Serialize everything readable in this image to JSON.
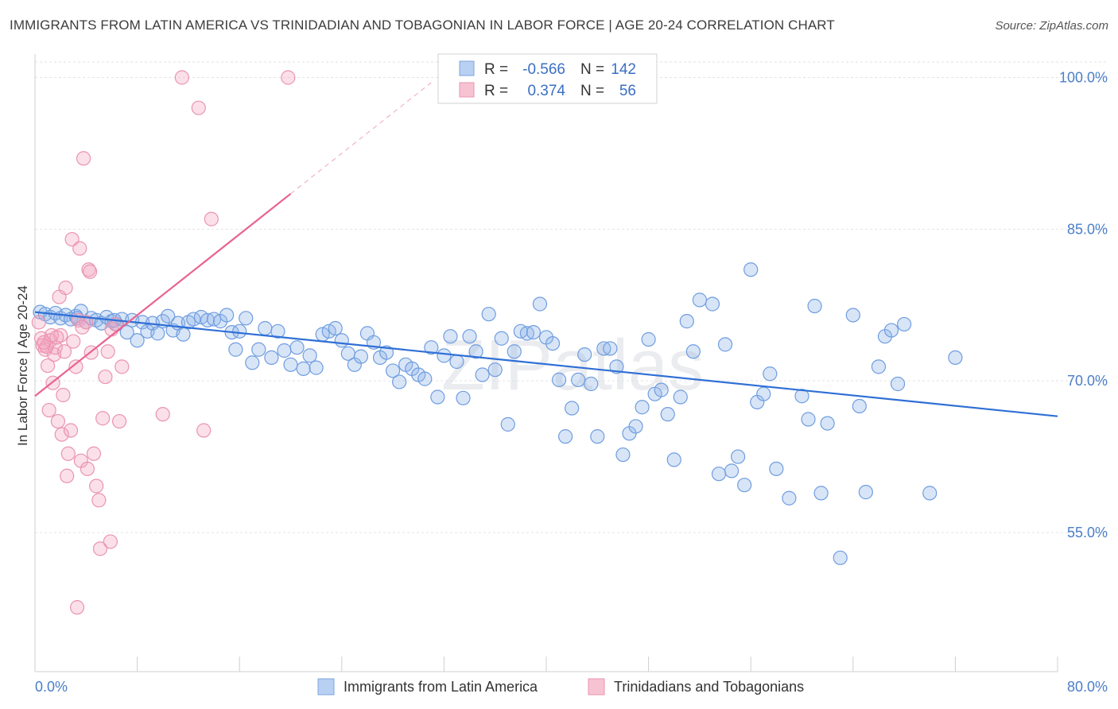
{
  "title": "IMMIGRANTS FROM LATIN AMERICA VS TRINIDADIAN AND TOBAGONIAN IN LABOR FORCE | AGE 20-24 CORRELATION CHART",
  "source": "Source: ZipAtlas.com",
  "watermark": "ZIPatlas",
  "chart_data": {
    "type": "scatter",
    "title": "IMMIGRANTS FROM LATIN AMERICA VS TRINIDADIAN AND TOBAGONIAN IN LABOR FORCE | AGE 20-24 CORRELATION CHART",
    "xlabel": "",
    "ylabel": "In Labor Force | Age 20-24",
    "xlim": [
      0,
      80
    ],
    "ylim": [
      40,
      101.5
    ],
    "x_tick_labels": [
      "0.0%",
      "80.0%"
    ],
    "y_ticks": [
      55,
      70,
      85,
      100
    ],
    "y_tick_labels": [
      "55.0%",
      "70.0%",
      "85.0%",
      "100.0%"
    ],
    "grid": true,
    "legend_position": "top-center",
    "legend": [
      {
        "r_label": "R =",
        "r_value": "-0.566",
        "n_label": "N =",
        "n_value": "142"
      },
      {
        "r_label": "R =",
        "r_value": "0.374",
        "n_label": "N =",
        "n_value": "56"
      }
    ],
    "series": [
      {
        "name": "Immigrants from Latin America",
        "color": "#8fb4e8",
        "line_color": "#2f6fd6",
        "trend": {
          "x0": 0,
          "y0": 76.8,
          "x1": 80,
          "y1": 66.5
        },
        "points": [
          [
            0.4,
            76.8
          ],
          [
            0.8,
            76.6
          ],
          [
            1.2,
            76.3
          ],
          [
            1.6,
            76.7
          ],
          [
            2,
            76.2
          ],
          [
            2.4,
            76.5
          ],
          [
            2.8,
            76.1
          ],
          [
            3.2,
            76.4
          ],
          [
            3.6,
            76.9
          ],
          [
            4,
            75.8
          ],
          [
            4.4,
            76.2
          ],
          [
            4.8,
            76.0
          ],
          [
            5.2,
            75.7
          ],
          [
            5.6,
            76.3
          ],
          [
            6,
            75.9
          ],
          [
            6.4,
            75.6
          ],
          [
            6.8,
            76.1
          ],
          [
            7.2,
            74.8
          ],
          [
            7.6,
            76.0
          ],
          [
            8,
            74.0
          ],
          [
            8.4,
            75.8
          ],
          [
            8.8,
            74.9
          ],
          [
            9.2,
            75.7
          ],
          [
            9.6,
            74.7
          ],
          [
            10,
            75.9
          ],
          [
            10.4,
            76.4
          ],
          [
            10.8,
            75.0
          ],
          [
            11.2,
            75.7
          ],
          [
            11.6,
            74.6
          ],
          [
            12,
            75.8
          ],
          [
            12.4,
            76.1
          ],
          [
            13,
            76.3
          ],
          [
            13.5,
            76.0
          ],
          [
            14,
            76.1
          ],
          [
            14.5,
            75.9
          ],
          [
            15,
            76.5
          ],
          [
            15.4,
            74.8
          ],
          [
            15.7,
            73.1
          ],
          [
            16,
            74.9
          ],
          [
            16.5,
            76.2
          ],
          [
            17,
            71.8
          ],
          [
            17.5,
            73.1
          ],
          [
            18,
            75.2
          ],
          [
            18.5,
            72.3
          ],
          [
            19,
            74.9
          ],
          [
            19.5,
            73.0
          ],
          [
            20,
            71.6
          ],
          [
            20.5,
            73.3
          ],
          [
            21,
            71.2
          ],
          [
            21.5,
            72.5
          ],
          [
            22,
            71.3
          ],
          [
            22.5,
            74.6
          ],
          [
            23,
            74.9
          ],
          [
            23.5,
            75.2
          ],
          [
            24,
            74.0
          ],
          [
            24.5,
            72.7
          ],
          [
            25,
            71.6
          ],
          [
            25.5,
            72.4
          ],
          [
            26,
            74.7
          ],
          [
            26.5,
            73.8
          ],
          [
            27,
            72.3
          ],
          [
            27.5,
            72.8
          ],
          [
            28,
            71.0
          ],
          [
            28.5,
            69.9
          ],
          [
            29,
            71.6
          ],
          [
            29.5,
            71.2
          ],
          [
            30,
            70.6
          ],
          [
            30.5,
            70.2
          ],
          [
            31,
            73.3
          ],
          [
            31.5,
            68.4
          ],
          [
            32,
            72.5
          ],
          [
            32.5,
            74.4
          ],
          [
            33,
            71.9
          ],
          [
            33.5,
            68.3
          ],
          [
            34,
            74.4
          ],
          [
            34.5,
            72.9
          ],
          [
            35,
            70.6
          ],
          [
            35.5,
            76.6
          ],
          [
            36,
            71.1
          ],
          [
            36.5,
            74.2
          ],
          [
            37,
            65.7
          ],
          [
            37.5,
            72.9
          ],
          [
            38,
            74.9
          ],
          [
            38.5,
            74.7
          ],
          [
            39,
            74.8
          ],
          [
            39.5,
            77.6
          ],
          [
            40,
            74.3
          ],
          [
            40.5,
            73.7
          ],
          [
            41,
            70.1
          ],
          [
            41.5,
            64.5
          ],
          [
            42,
            67.3
          ],
          [
            42.5,
            70.1
          ],
          [
            43,
            72.6
          ],
          [
            43.5,
            69.7
          ],
          [
            44,
            64.5
          ],
          [
            44.5,
            73.2
          ],
          [
            45,
            73.2
          ],
          [
            45.5,
            71.4
          ],
          [
            46,
            62.7
          ],
          [
            46.5,
            64.8
          ],
          [
            47,
            65.5
          ],
          [
            47.5,
            67.4
          ],
          [
            48,
            74.1
          ],
          [
            48.5,
            68.7
          ],
          [
            49,
            69.1
          ],
          [
            49.5,
            66.7
          ],
          [
            50,
            62.2
          ],
          [
            50.5,
            68.4
          ],
          [
            51,
            75.9
          ],
          [
            51.5,
            72.9
          ],
          [
            52,
            78.0
          ],
          [
            53,
            77.6
          ],
          [
            53.5,
            60.8
          ],
          [
            54,
            73.6
          ],
          [
            54.5,
            61.1
          ],
          [
            55,
            62.5
          ],
          [
            55.5,
            59.7
          ],
          [
            56,
            81.0
          ],
          [
            56.5,
            67.9
          ],
          [
            57,
            68.7
          ],
          [
            57.5,
            70.7
          ],
          [
            58,
            61.3
          ],
          [
            59,
            58.4
          ],
          [
            60,
            68.5
          ],
          [
            60.5,
            66.2
          ],
          [
            61,
            77.4
          ],
          [
            61.5,
            58.9
          ],
          [
            62,
            65.8
          ],
          [
            63,
            52.5
          ],
          [
            64,
            76.5
          ],
          [
            64.5,
            67.5
          ],
          [
            65,
            59.0
          ],
          [
            66,
            71.4
          ],
          [
            66.5,
            74.4
          ],
          [
            67,
            75.0
          ],
          [
            67.5,
            69.7
          ],
          [
            68,
            75.6
          ],
          [
            70,
            58.9
          ],
          [
            72,
            72.3
          ],
          [
            3.3,
            76.2
          ],
          [
            6.2,
            76.0
          ]
        ]
      },
      {
        "name": "Trinidadians and Tobagonians",
        "color": "#f4a7bf",
        "line_color": "#e8638f",
        "trend": {
          "x0": 0,
          "y0": 68.5,
          "x1": 20,
          "y1": 88.5
        },
        "trend_dashed_to": {
          "x": 31,
          "y": 99.5
        },
        "points": [
          [
            0.3,
            75.8
          ],
          [
            0.5,
            74.2
          ],
          [
            0.6,
            73.5
          ],
          [
            0.8,
            73.1
          ],
          [
            1,
            71.5
          ],
          [
            1.2,
            74.0
          ],
          [
            1.4,
            69.8
          ],
          [
            1.5,
            72.6
          ],
          [
            1.6,
            73.3
          ],
          [
            1.8,
            66.0
          ],
          [
            1.9,
            78.3
          ],
          [
            2,
            74.5
          ],
          [
            2.1,
            64.7
          ],
          [
            2.2,
            68.6
          ],
          [
            2.4,
            79.2
          ],
          [
            2.5,
            60.6
          ],
          [
            2.6,
            62.8
          ],
          [
            2.8,
            65.1
          ],
          [
            2.9,
            84.0
          ],
          [
            3,
            73.9
          ],
          [
            3.2,
            71.4
          ],
          [
            3.3,
            47.6
          ],
          [
            3.4,
            76.0
          ],
          [
            3.6,
            62.1
          ],
          [
            3.8,
            92.0
          ],
          [
            4,
            75.8
          ],
          [
            4.1,
            61.3
          ],
          [
            4.2,
            81.0
          ],
          [
            4.4,
            72.8
          ],
          [
            4.6,
            62.8
          ],
          [
            4.8,
            59.6
          ],
          [
            5,
            58.2
          ],
          [
            5.1,
            53.4
          ],
          [
            5.3,
            66.3
          ],
          [
            5.5,
            70.4
          ],
          [
            5.7,
            72.9
          ],
          [
            5.9,
            54.1
          ],
          [
            6,
            75.1
          ],
          [
            6.3,
            75.6
          ],
          [
            6.6,
            66.0
          ],
          [
            6.8,
            71.4
          ],
          [
            10,
            66.7
          ],
          [
            11.5,
            100.0
          ],
          [
            12.8,
            97.0
          ],
          [
            13.2,
            65.1
          ],
          [
            13.8,
            86.0
          ],
          [
            19.8,
            100.0
          ],
          [
            0.9,
            73.4
          ],
          [
            1.3,
            74.5
          ],
          [
            1.7,
            74.3
          ],
          [
            2.3,
            72.9
          ],
          [
            3.5,
            83.1
          ],
          [
            4.3,
            80.8
          ],
          [
            3.7,
            75.3
          ],
          [
            0.7,
            73.8
          ],
          [
            1.1,
            67.1
          ]
        ]
      }
    ]
  }
}
